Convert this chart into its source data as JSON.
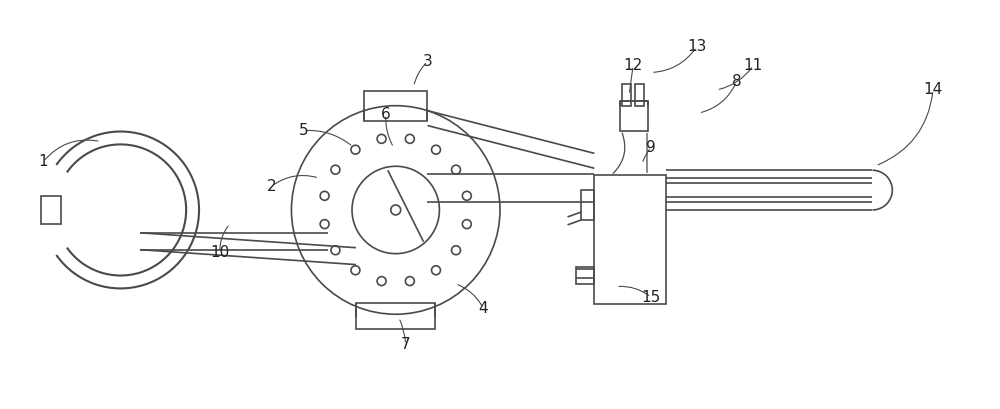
{
  "bg_color": "#ffffff",
  "line_color": "#4a4a4a",
  "lw": 1.2,
  "fig_width": 10.0,
  "fig_height": 4.09
}
